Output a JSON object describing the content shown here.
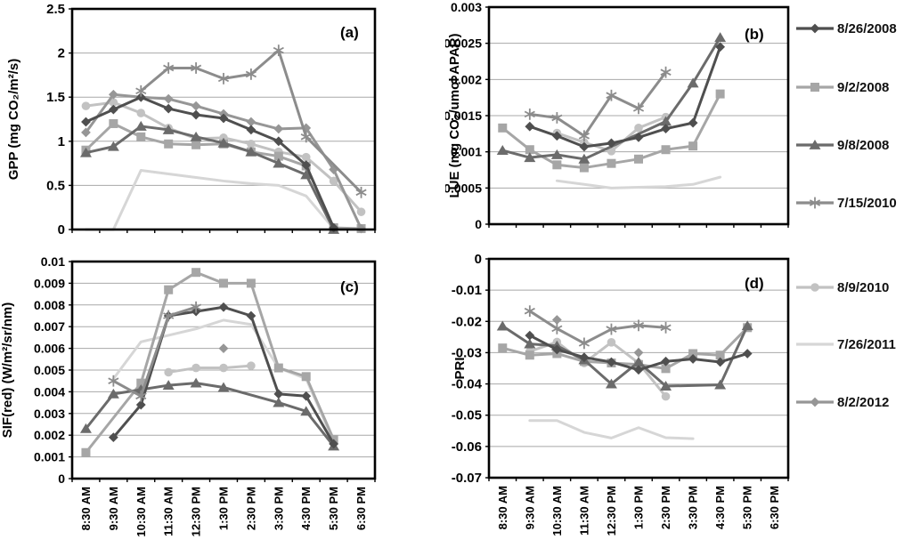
{
  "figure": {
    "description_panels": [
      "(a)",
      "(b)",
      "(c)",
      "(d)"
    ]
  },
  "legend": {
    "groups": [
      {
        "items": [
          {
            "label": "8/26/2008",
            "marker": "diamond",
            "color": "#4f4f4f"
          },
          {
            "label": "9/2/2008",
            "marker": "square",
            "color": "#a6a6a6"
          },
          {
            "label": "9/8/2008",
            "marker": "triangle",
            "color": "#6b6b6b"
          },
          {
            "label": "7/15/2010",
            "marker": "asterisk",
            "color": "#8c8c8c"
          }
        ]
      },
      {
        "items": [
          {
            "label": "8/9/2010",
            "marker": "circle",
            "color": "#c2c2c2"
          },
          {
            "label": "7/26/2011",
            "marker": "none",
            "color": "#d6d6d6"
          },
          {
            "label": "8/2/2012",
            "marker": "diamond",
            "color": "#969696"
          }
        ]
      }
    ]
  },
  "chart_data": [
    {
      "type": "line",
      "panel_label": "(a)",
      "ylabel": "GPP (mg CO₂/m²/s)",
      "ylim": [
        0,
        2.5
      ],
      "ytick_labels": [
        "0",
        "0.5",
        "1",
        "1.5",
        "2",
        "2.5"
      ],
      "grid": true,
      "categories": [
        "8:30 AM",
        "9:30 AM",
        "10:30 AM",
        "11:30 AM",
        "12:30 PM",
        "1:30 PM",
        "2:30 PM",
        "3:30 PM",
        "4:30 PM",
        "5:30 PM",
        "6:30 PM"
      ],
      "series": [
        {
          "name": "7/26/2011",
          "marker": "none",
          "color": "#d6d6d6",
          "span_gaps": false,
          "values": [
            0.0,
            0.0,
            0.67,
            0.63,
            0.59,
            0.55,
            0.52,
            0.5,
            0.38,
            0.01,
            0.01
          ]
        },
        {
          "name": "8/9/2010",
          "marker": "circle",
          "color": "#c2c2c2",
          "span_gaps": false,
          "values": [
            1.4,
            1.44,
            1.32,
            1.15,
            1.03,
            1.04,
            0.97,
            0.88,
            0.82,
            0.55,
            0.2
          ]
        },
        {
          "name": "9/2/2008",
          "marker": "square",
          "color": "#a6a6a6",
          "span_gaps": false,
          "values": [
            0.9,
            1.2,
            1.05,
            0.97,
            0.96,
            0.97,
            0.88,
            0.83,
            0.72,
            0.02,
            0.01
          ]
        },
        {
          "name": "8/2/2012",
          "marker": "diamond",
          "color": "#969696",
          "span_gaps": false,
          "values": [
            1.1,
            1.53,
            1.5,
            1.48,
            1.4,
            1.31,
            1.22,
            1.14,
            1.15,
            0.68,
            0.01
          ]
        },
        {
          "name": "9/8/2008",
          "marker": "triangle",
          "color": "#6b6b6b",
          "span_gaps": false,
          "values": [
            0.87,
            0.94,
            1.17,
            1.13,
            1.05,
            0.98,
            0.88,
            0.75,
            0.62,
            0.0,
            null
          ]
        },
        {
          "name": "8/26/2008",
          "marker": "diamond",
          "color": "#4f4f4f",
          "span_gaps": false,
          "values": [
            1.22,
            1.36,
            1.5,
            1.37,
            1.3,
            1.26,
            1.13,
            1.0,
            0.73,
            0.02,
            null
          ]
        },
        {
          "name": "7/15/2010",
          "marker": "asterisk",
          "color": "#8c8c8c",
          "span_gaps": true,
          "values": [
            null,
            null,
            1.57,
            1.83,
            1.83,
            1.71,
            1.76,
            2.03,
            1.05,
            null,
            0.42
          ]
        }
      ]
    },
    {
      "type": "line",
      "panel_label": "(b)",
      "ylabel": "LUE (mg CO₂/umol APAR)",
      "ylim": [
        0,
        0.003
      ],
      "ytick_labels": [
        "0",
        "0.0005",
        "0.001",
        "0.0015",
        "0.002",
        "0.0025",
        "0.003"
      ],
      "grid": true,
      "categories": [
        "8:30 AM",
        "9:30 AM",
        "10:30 AM",
        "11:30 AM",
        "12:30 PM",
        "1:30 PM",
        "2:30 PM",
        "3:30 PM",
        "4:30 PM",
        "5:30 PM",
        "6:30 PM"
      ],
      "series": [
        {
          "name": "7/26/2011",
          "marker": "none",
          "color": "#d6d6d6",
          "span_gaps": false,
          "values": [
            null,
            null,
            0.0006,
            0.00055,
            0.0005,
            0.00051,
            0.00052,
            0.00055,
            0.00065,
            null,
            null
          ]
        },
        {
          "name": "8/9/2010",
          "marker": "circle",
          "color": "#c2c2c2",
          "span_gaps": false,
          "values": [
            null,
            null,
            0.00126,
            0.00113,
            0.00101,
            0.00133,
            0.00148,
            null,
            null,
            null,
            null
          ]
        },
        {
          "name": "9/2/2008",
          "marker": "square",
          "color": "#a6a6a6",
          "span_gaps": false,
          "values": [
            0.00133,
            0.00103,
            0.00082,
            0.00078,
            0.00084,
            0.0009,
            0.00103,
            0.00108,
            0.0018,
            null,
            null
          ]
        },
        {
          "name": "9/8/2008",
          "marker": "triangle",
          "color": "#6b6b6b",
          "span_gaps": true,
          "values": [
            0.00102,
            0.00092,
            0.00096,
            0.0009,
            null,
            null,
            0.00142,
            0.00195,
            0.00258,
            null,
            null
          ]
        },
        {
          "name": "8/26/2008",
          "marker": "diamond",
          "color": "#4f4f4f",
          "span_gaps": false,
          "values": [
            null,
            0.00135,
            0.00122,
            0.00107,
            0.00112,
            0.0012,
            0.00132,
            0.0014,
            0.00245,
            null,
            null
          ]
        },
        {
          "name": "7/15/2010",
          "marker": "asterisk",
          "color": "#8c8c8c",
          "span_gaps": false,
          "values": [
            null,
            0.00152,
            0.00147,
            0.00122,
            0.00178,
            0.0016,
            0.0021,
            null,
            null,
            null,
            null
          ]
        }
      ]
    },
    {
      "type": "line",
      "panel_label": "(c)",
      "ylabel": "SIF(red)  (W/m²/sr/nm)",
      "ylim": [
        0,
        0.01
      ],
      "ytick_labels": [
        "0",
        "0.001",
        "0.002",
        "0.003",
        "0.004",
        "0.005",
        "0.006",
        "0.007",
        "0.008",
        "0.009",
        "0.01"
      ],
      "grid": true,
      "categories": [
        "8:30 AM",
        "9:30 AM",
        "10:30 AM",
        "11:30 AM",
        "12:30 PM",
        "1:30 PM",
        "2:30 PM",
        "3:30 PM",
        "4:30 PM",
        "5:30 PM",
        "6:30 PM"
      ],
      "series": [
        {
          "name": "7/26/2011",
          "marker": "none",
          "color": "#d6d6d6",
          "span_gaps": false,
          "values": [
            null,
            0.0046,
            0.0063,
            0.0066,
            0.0069,
            0.0073,
            0.0071,
            0.0051,
            0.0046,
            0.0017,
            null
          ]
        },
        {
          "name": "8/9/2010",
          "marker": "circle",
          "color": "#c2c2c2",
          "span_gaps": false,
          "values": [
            null,
            null,
            null,
            0.0049,
            0.0051,
            0.0051,
            0.0052,
            null,
            null,
            null,
            null
          ]
        },
        {
          "name": "9/2/2008",
          "marker": "square",
          "color": "#a6a6a6",
          "span_gaps": true,
          "values": [
            0.0012,
            null,
            0.0044,
            0.0087,
            0.0095,
            0.009,
            0.009,
            0.0051,
            0.0047,
            0.0018,
            null
          ]
        },
        {
          "name": "8/2/2012",
          "marker": "diamond",
          "color": "#969696",
          "span_gaps": false,
          "values": [
            null,
            null,
            0.0041,
            null,
            null,
            0.006,
            null,
            null,
            null,
            null,
            null
          ]
        },
        {
          "name": "9/8/2008",
          "marker": "triangle",
          "color": "#6b6b6b",
          "span_gaps": true,
          "values": [
            0.0023,
            0.0039,
            0.0041,
            0.0043,
            0.0044,
            0.0042,
            null,
            0.0035,
            0.0031,
            0.0015,
            null
          ]
        },
        {
          "name": "8/26/2008",
          "marker": "diamond",
          "color": "#4f4f4f",
          "span_gaps": false,
          "values": [
            null,
            0.0019,
            0.0034,
            0.0075,
            0.0077,
            0.0079,
            0.0075,
            0.0039,
            0.0038,
            0.0016,
            null
          ]
        },
        {
          "name": "7/15/2010",
          "marker": "asterisk",
          "color": "#8c8c8c",
          "span_gaps": false,
          "values": [
            null,
            0.0045,
            0.0038,
            0.0075,
            0.0079,
            null,
            null,
            null,
            null,
            null,
            null
          ]
        }
      ]
    },
    {
      "type": "line",
      "panel_label": "(d)",
      "ylabel": "PRI",
      "ylim": [
        -0.07,
        0
      ],
      "ytick_labels": [
        "-0.07",
        "-0.06",
        "-0.05",
        "-0.04",
        "-0.03",
        "-0.02",
        "-0.01",
        "0"
      ],
      "grid": true,
      "categories": [
        "8:30 AM",
        "9:30 AM",
        "10:30 AM",
        "11:30 AM",
        "12:30 PM",
        "1:30 PM",
        "2:30 PM",
        "3:30 PM",
        "4:30 PM",
        "5:30 PM",
        "6:30 PM"
      ],
      "series": [
        {
          "name": "7/26/2011",
          "marker": "none",
          "color": "#d6d6d6",
          "span_gaps": false,
          "values": [
            null,
            -0.0517,
            -0.0517,
            -0.0555,
            -0.0573,
            -0.054,
            -0.0572,
            -0.0575,
            null,
            null,
            null
          ]
        },
        {
          "name": "8/9/2010",
          "marker": "circle",
          "color": "#c2c2c2",
          "span_gaps": false,
          "values": [
            null,
            -0.0296,
            -0.0266,
            -0.0333,
            -0.0267,
            -0.0333,
            -0.044,
            null,
            null,
            null,
            null
          ]
        },
        {
          "name": "9/2/2008",
          "marker": "square",
          "color": "#a6a6a6",
          "span_gaps": false,
          "values": [
            -0.0285,
            -0.0308,
            -0.0303,
            -0.0328,
            -0.0333,
            -0.0338,
            -0.0351,
            -0.0303,
            -0.0308,
            -0.022,
            null
          ]
        },
        {
          "name": "8/2/2012",
          "marker": "diamond",
          "color": "#969696",
          "span_gaps": false,
          "values": [
            null,
            null,
            -0.0195,
            null,
            null,
            -0.03,
            null,
            null,
            null,
            null,
            null
          ]
        },
        {
          "name": "9/8/2008",
          "marker": "triangle",
          "color": "#6b6b6b",
          "span_gaps": true,
          "values": [
            -0.0215,
            -0.0272,
            -0.0278,
            -0.0323,
            -0.04,
            -0.033,
            -0.0407,
            null,
            -0.0403,
            -0.0214,
            null
          ]
        },
        {
          "name": "8/26/2008",
          "marker": "diamond",
          "color": "#4f4f4f",
          "span_gaps": false,
          "values": [
            null,
            -0.0245,
            -0.029,
            -0.0315,
            -0.033,
            -0.0355,
            -0.0328,
            -0.032,
            -0.033,
            -0.0303,
            null
          ]
        },
        {
          "name": "7/15/2010",
          "marker": "asterisk",
          "color": "#8c8c8c",
          "span_gaps": false,
          "values": [
            null,
            -0.0167,
            -0.0223,
            -0.027,
            -0.0225,
            -0.0213,
            -0.022,
            null,
            null,
            null,
            null
          ]
        }
      ]
    }
  ]
}
